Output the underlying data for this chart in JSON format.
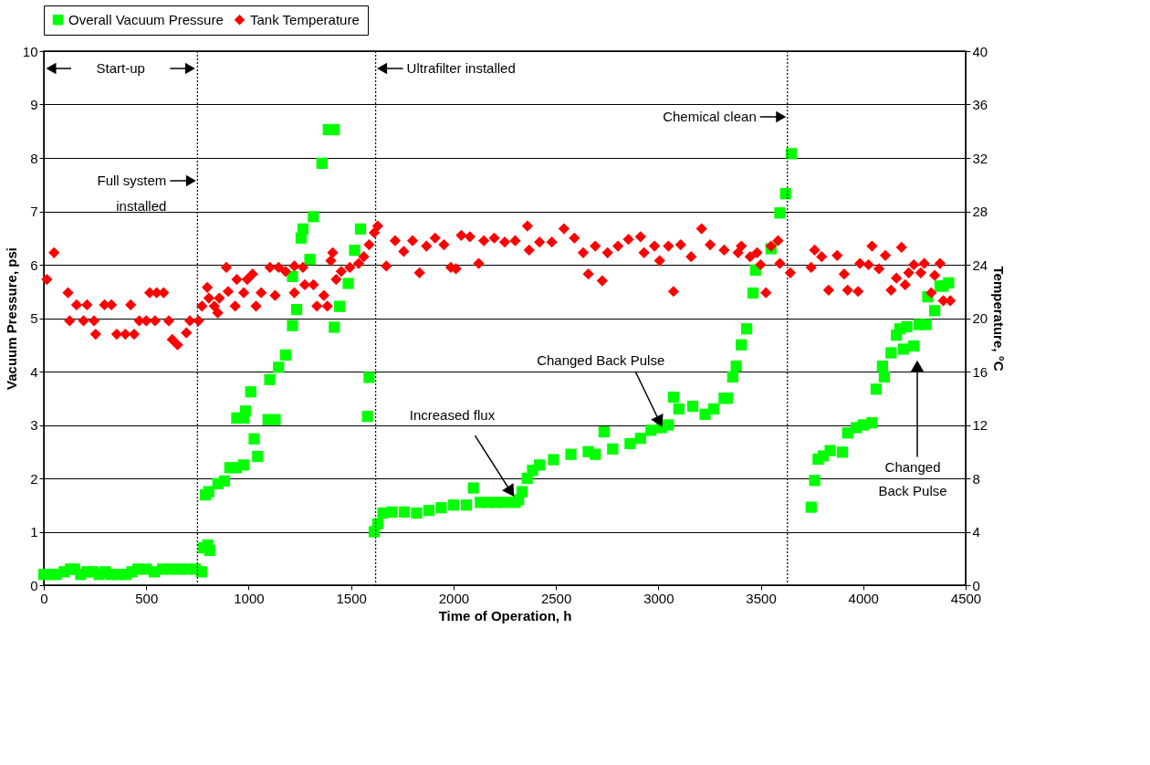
{
  "chart_data": {
    "type": "scatter",
    "xlabel": "Time of Operation, h",
    "ylabel": "Vacuum Pressure, psi",
    "y2label": "Temperature, °C",
    "xlim": [
      0,
      4500
    ],
    "xticks": [
      0,
      500,
      1000,
      1500,
      2000,
      2500,
      3000,
      3500,
      4000,
      4500
    ],
    "ylim": [
      0,
      10
    ],
    "yticks": [
      0,
      1,
      2,
      3,
      4,
      5,
      6,
      7,
      8,
      9,
      10
    ],
    "y2lim": [
      0,
      40
    ],
    "y2ticks": [
      0,
      4,
      8,
      12,
      16,
      20,
      24,
      28,
      32,
      36,
      40
    ],
    "grid": "y",
    "legend": "top",
    "series": [
      {
        "name": "Overall Vacuum Pressure",
        "color": "#00ff00",
        "marker": "square",
        "x": [
          0,
          25,
          60,
          100,
          130,
          150,
          180,
          210,
          240,
          270,
          300,
          330,
          360,
          400,
          430,
          460,
          500,
          540,
          580,
          620,
          660,
          700,
          740,
          770,
          780,
          800,
          810,
          789,
          805,
          850,
          882,
          908,
          940,
          976,
          942,
          976,
          985,
          1010,
          1027,
          1044,
          1095,
          1129,
          1103,
          1146,
          1180,
          1214,
          1234,
          1214,
          1299,
          1256,
          1265,
          1316,
          1358,
          1389,
          1418,
          1418,
          1444,
          1486,
          1517,
          1546,
          1588,
          1580,
          1613,
          1630,
          1656,
          1700,
          1760,
          1820,
          1880,
          1940,
          2000,
          2063,
          2097,
          2131,
          2170,
          2210,
          2250,
          2301,
          2318,
          2335,
          2360,
          2386,
          2420,
          2488,
          2573,
          2658,
          2692,
          2735,
          2777,
          2862,
          2913,
          2964,
          3015,
          3049,
          3074,
          3100,
          3168,
          3228,
          3270,
          3321,
          3337,
          3363,
          3380,
          3405,
          3431,
          3462,
          3474,
          3550,
          3593,
          3621,
          3649,
          3746,
          3763,
          3780,
          3805,
          3839,
          3899,
          3924,
          3967,
          4001,
          4043,
          4063,
          4094,
          4103,
          4136,
          4162,
          4179,
          4196,
          4213,
          4247,
          4273,
          4307,
          4315,
          4349,
          4375,
          4391,
          4417
        ],
        "values": [
          0.2,
          0.2,
          0.2,
          0.25,
          0.3,
          0.3,
          0.2,
          0.25,
          0.25,
          0.2,
          0.25,
          0.2,
          0.2,
          0.2,
          0.25,
          0.3,
          0.3,
          0.25,
          0.3,
          0.3,
          0.3,
          0.3,
          0.3,
          0.25,
          0.7,
          0.75,
          0.65,
          1.69,
          1.75,
          1.9,
          1.95,
          2.2,
          2.2,
          2.25,
          3.13,
          3.13,
          3.26,
          3.62,
          2.74,
          2.41,
          3.1,
          3.1,
          3.85,
          4.08,
          4.31,
          4.86,
          5.16,
          5.78,
          6.1,
          6.5,
          6.67,
          6.9,
          7.9,
          8.53,
          8.53,
          4.83,
          5.22,
          5.65,
          6.27,
          6.67,
          3.89,
          3.16,
          1.0,
          1.15,
          1.35,
          1.37,
          1.37,
          1.35,
          1.4,
          1.45,
          1.5,
          1.5,
          1.82,
          1.55,
          1.55,
          1.55,
          1.55,
          1.55,
          1.6,
          1.75,
          2.0,
          2.15,
          2.25,
          2.35,
          2.45,
          2.5,
          2.45,
          2.87,
          2.55,
          2.65,
          2.75,
          2.9,
          2.95,
          3.0,
          3.52,
          3.3,
          3.35,
          3.2,
          3.3,
          3.5,
          3.5,
          3.9,
          4.1,
          4.5,
          4.8,
          5.47,
          5.9,
          6.3,
          6.97,
          7.33,
          8.08,
          1.46,
          1.96,
          2.36,
          2.42,
          2.52,
          2.49,
          2.85,
          2.95,
          3.0,
          3.04,
          3.67,
          4.1,
          3.9,
          4.35,
          4.68,
          4.8,
          4.42,
          4.84,
          4.48,
          4.88,
          4.88,
          5.4,
          5.14,
          5.6,
          5.6,
          5.66
        ]
      },
      {
        "name": "Tank Temperature",
        "color": "#ff0000",
        "marker": "diamond",
        "axis": "y2",
        "x": [
          15,
          50,
          118,
          160,
          211,
          126,
          194,
          245,
          253,
          296,
          330,
          356,
          398,
          441,
          424,
          466,
          500,
          543,
          517,
          551,
          585,
          610,
          627,
          653,
          696,
          713,
          755,
          772,
          798,
          806,
          832,
          849,
          857,
          891,
          900,
          934,
          942,
          976,
          993,
          1019,
          1036,
          1061,
          1104,
          1129,
          1146,
          1180,
          1223,
          1223,
          1265,
          1274,
          1316,
          1333,
          1367,
          1384,
          1410,
          1401,
          1427,
          1452,
          1494,
          1537,
          1562,
          1588,
          1613,
          1630,
          1672,
          1715,
          1757,
          1800,
          1834,
          1868,
          1910,
          1953,
          1987,
          2012,
          2038,
          2080,
          2123,
          2148,
          2199,
          2250,
          2301,
          2361,
          2369,
          2420,
          2480,
          2539,
          2590,
          2633,
          2658,
          2692,
          2726,
          2752,
          2803,
          2854,
          2913,
          2930,
          2981,
          3006,
          3049,
          3074,
          3109,
          3160,
          3211,
          3253,
          3321,
          3389,
          3405,
          3448,
          3482,
          3499,
          3525,
          3550,
          3584,
          3593,
          3644,
          3746,
          3763,
          3797,
          3831,
          3873,
          3907,
          3924,
          3975,
          3984,
          4026,
          4043,
          4077,
          4108,
          4136,
          4162,
          4187,
          4205,
          4222,
          4247,
          4281,
          4298,
          4332,
          4349,
          4375,
          4391,
          4425
        ],
        "values": [
          22.9,
          24.9,
          21.9,
          21.0,
          21.0,
          19.8,
          19.8,
          19.8,
          18.8,
          21.0,
          21.0,
          18.8,
          18.8,
          18.8,
          21.0,
          19.8,
          19.8,
          19.8,
          21.9,
          21.9,
          21.9,
          19.8,
          18.4,
          18.0,
          18.9,
          19.8,
          19.8,
          20.9,
          22.3,
          21.5,
          20.9,
          20.4,
          21.5,
          23.8,
          22.0,
          20.9,
          22.9,
          21.9,
          22.9,
          23.3,
          20.9,
          21.9,
          23.8,
          21.7,
          23.8,
          23.5,
          21.9,
          23.9,
          23.8,
          22.5,
          22.5,
          20.9,
          21.7,
          20.9,
          24.9,
          24.3,
          22.9,
          23.5,
          23.8,
          24.1,
          24.6,
          25.5,
          26.4,
          26.9,
          23.9,
          25.8,
          25.0,
          25.8,
          23.4,
          25.4,
          26.0,
          25.5,
          23.8,
          23.7,
          26.2,
          26.1,
          24.1,
          25.8,
          26.0,
          25.7,
          25.8,
          26.9,
          25.1,
          25.7,
          25.7,
          26.7,
          26.0,
          24.9,
          23.3,
          25.4,
          22.8,
          24.9,
          25.4,
          25.9,
          26.1,
          24.9,
          25.4,
          24.3,
          25.4,
          22.0,
          25.5,
          24.6,
          26.7,
          25.5,
          25.1,
          24.9,
          25.4,
          24.6,
          24.9,
          24.0,
          21.9,
          25.4,
          25.8,
          24.1,
          23.4,
          23.8,
          25.1,
          24.6,
          22.1,
          24.7,
          23.3,
          22.1,
          22.0,
          24.1,
          24.0,
          25.4,
          23.7,
          24.7,
          22.1,
          23.0,
          25.3,
          22.5,
          23.4,
          24.0,
          23.4,
          24.1,
          21.9,
          23.2,
          24.1,
          21.3,
          21.3
        ]
      }
    ],
    "ref_lines": [
      {
        "axis": "x",
        "value": 750,
        "label": "Full system installed",
        "line_style": "dotted"
      },
      {
        "axis": "x",
        "value": 1620,
        "label": "Ultrafilter installed",
        "line_style": "dotted"
      },
      {
        "axis": "x",
        "value": 3630,
        "label": "Chemical clean",
        "line_style": "dotted"
      }
    ],
    "annotations": [
      "Start-up",
      {
        "text": "Increased flux",
        "x": 2280,
        "y": 1.75
      },
      {
        "text": "Changed Back Pulse",
        "x": 3006,
        "y": 3.06
      },
      {
        "text": "Changed Back Pulse",
        "x": 4264,
        "y": 4.1
      }
    ]
  }
}
